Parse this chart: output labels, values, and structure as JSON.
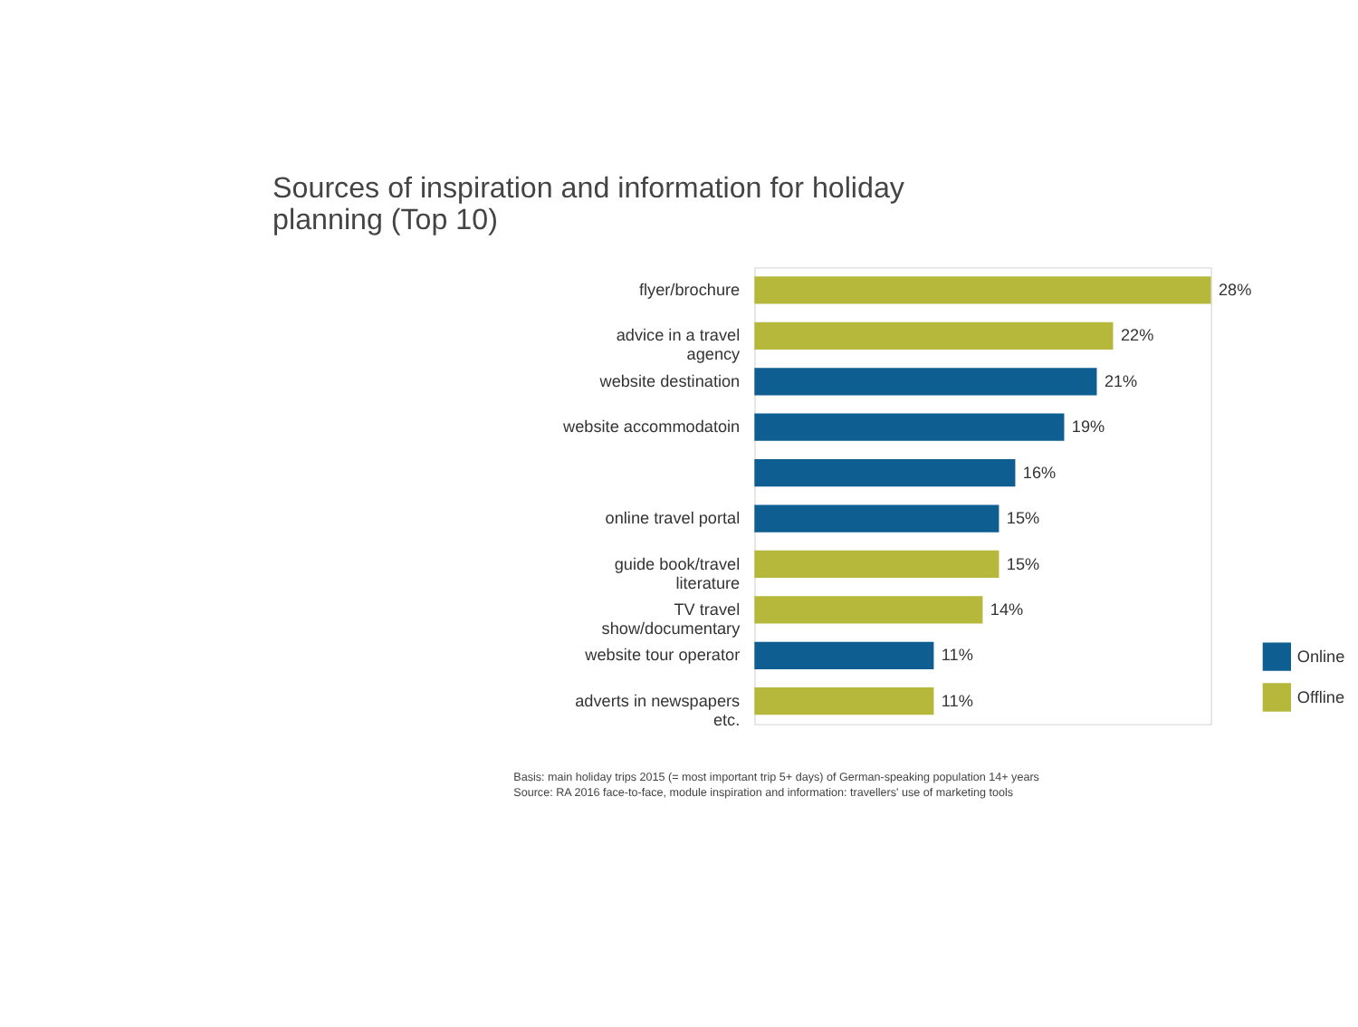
{
  "chart_data": {
    "type": "bar",
    "orientation": "horizontal",
    "title": "Sources of inspiration and information for holiday planning (Top 10)",
    "categories": [
      "flyer/brochure",
      "advice in a travel agency",
      "website destination",
      "website accommodatoin",
      null,
      "online travel portal",
      "guide book/travel literature",
      "TV travel show/documentary",
      "website tour operator",
      "adverts in newspapers etc."
    ],
    "series": [
      {
        "name": "Online",
        "color": "#0f5e92",
        "values": [
          null,
          null,
          21,
          19,
          16,
          15,
          null,
          null,
          11,
          null
        ],
        "value_labels": [
          null,
          null,
          "21%",
          "19%",
          "16%",
          "15%",
          null,
          null,
          "11%",
          null
        ]
      },
      {
        "name": "Offline",
        "color": "#b5b83a",
        "values": [
          28,
          22,
          null,
          null,
          null,
          null,
          15,
          14,
          null,
          11
        ],
        "value_labels": [
          "28%",
          "22%",
          null,
          null,
          null,
          null,
          "15%",
          "14%",
          null,
          "11%"
        ]
      }
    ],
    "legend": "bottom right",
    "annotations": [
      "Basis: main holiday trips 2015 (= most important trip 5+ days) of German-speaking population 14+ years",
      "Source: RA 2016 face-to-face, module inspiration and information: travellers' use of marketing tools"
    ]
  }
}
